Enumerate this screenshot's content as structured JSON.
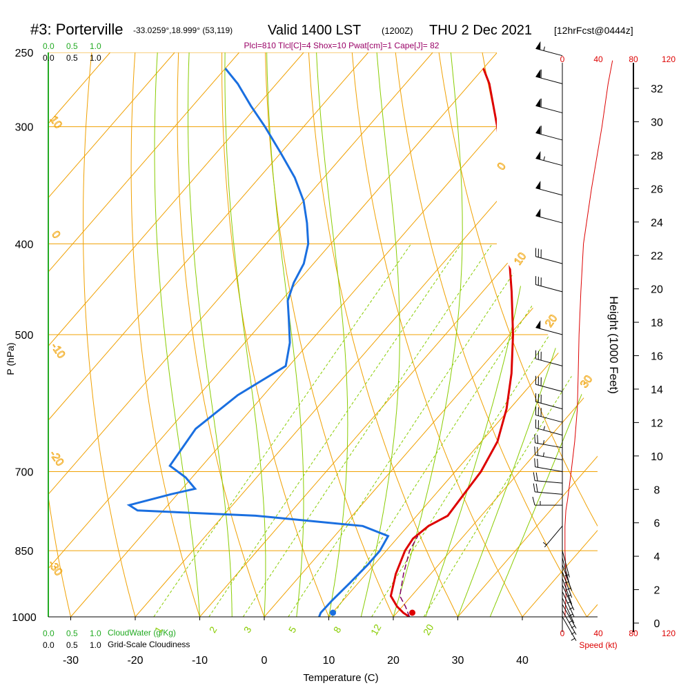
{
  "header": {
    "station": "#3: Porterville",
    "coords": "-33.0259°,18.999° (53,119)",
    "valid": "Valid 1400 LST",
    "utc": "(1200Z)",
    "date": "THU 2 Dec 2021",
    "forecast": "[12hrFcst@0444z]",
    "indices": "Plcl=810 Tlcl[C]=4 Shox=10 Pwat[cm]=1 Cape[J]= 82"
  },
  "labels": {
    "ylabel": "P (hPa)",
    "xlabel": "Temperature (C)",
    "height_label": "Height (1000 Feet)",
    "speed_label": "Speed (kt)",
    "cloudwater_label": "CloudWater (g/Kg)",
    "cloudiness_label": "Grid-Scale Cloudiness"
  },
  "colors": {
    "temperature": "#dd0000",
    "dewpoint": "#1a6fe0",
    "parcel": "#800060",
    "isotherm": "#f0a000",
    "dry_adiabat": "#f0a000",
    "moist_adiabat": "#88cc00",
    "mixing_ratio": "#88cc00",
    "wind_speed": "#dd0000",
    "cloud_scale": "#22aa22",
    "indices_text": "#990066"
  },
  "chart_data": {
    "type": "line",
    "title": "#3: Porterville",
    "xlabel": "Temperature (C)",
    "ylabel": "P (hPa)",
    "x_ticks": [
      -30,
      -20,
      -10,
      0,
      10,
      20,
      30,
      40
    ],
    "p_ticks": [
      1000,
      850,
      700,
      500,
      400,
      300,
      250
    ],
    "pressure_range": [
      1000,
      250
    ],
    "skew": true,
    "isotherm_labels": [
      "10",
      "0",
      "10",
      "20",
      "30"
    ],
    "dry_adiabat_labels": [
      "0",
      "10",
      "20",
      "30",
      "10",
      "0",
      "-10",
      "-20",
      "-30"
    ],
    "mixing_ratio_labels": [
      "1",
      "2",
      "3",
      "5",
      "8",
      "12",
      "20"
    ],
    "series": [
      {
        "name": "Temperature",
        "points": [
          [
            1000,
            22.5
          ],
          [
            990,
            21.0
          ],
          [
            975,
            19.2
          ],
          [
            950,
            16.8
          ],
          [
            900,
            14.6
          ],
          [
            850,
            12.9
          ],
          [
            825,
            12.5
          ],
          [
            800,
            13.2
          ],
          [
            780,
            14.8
          ],
          [
            750,
            14.5
          ],
          [
            700,
            14.0
          ],
          [
            650,
            12.5
          ],
          [
            600,
            9.5
          ],
          [
            550,
            5.5
          ],
          [
            500,
            0.5
          ],
          [
            450,
            -5.5
          ],
          [
            400,
            -12.5
          ],
          [
            350,
            -20.5
          ],
          [
            300,
            -30.0
          ],
          [
            270,
            -37.0
          ],
          [
            260,
            -40.0
          ]
        ]
      },
      {
        "name": "Dewpoint",
        "points": [
          [
            1000,
            8.5
          ],
          [
            990,
            8.2
          ],
          [
            960,
            8.3
          ],
          [
            920,
            8.7
          ],
          [
            880,
            9.0
          ],
          [
            850,
            9.0
          ],
          [
            820,
            8.3
          ],
          [
            800,
            3.0
          ],
          [
            780,
            -15.0
          ],
          [
            770,
            -34.0
          ],
          [
            760,
            -36.0
          ],
          [
            740,
            -31.0
          ],
          [
            730,
            -28.0
          ],
          [
            710,
            -31.0
          ],
          [
            690,
            -35.0
          ],
          [
            630,
            -36.0
          ],
          [
            580,
            -34.0
          ],
          [
            540,
            -30.5
          ],
          [
            510,
            -33.0
          ],
          [
            480,
            -36.5
          ],
          [
            460,
            -39.0
          ],
          [
            440,
            -40.5
          ],
          [
            420,
            -41.5
          ],
          [
            400,
            -43.5
          ],
          [
            380,
            -46.5
          ],
          [
            360,
            -50.0
          ],
          [
            340,
            -54.5
          ],
          [
            320,
            -60.0
          ],
          [
            300,
            -66.0
          ],
          [
            285,
            -71.0
          ],
          [
            270,
            -76.0
          ],
          [
            260,
            -80.0
          ]
        ]
      },
      {
        "name": "Parcel",
        "points": [
          [
            1000,
            22.5
          ],
          [
            975,
            20.5
          ],
          [
            950,
            18.2
          ],
          [
            900,
            15.8
          ],
          [
            850,
            13.6
          ],
          [
            820,
            12.9
          ]
        ]
      }
    ],
    "surface_points": [
      {
        "name": "surface_temperature",
        "p": 1000,
        "t": 23.8
      },
      {
        "name": "surface_dewpoint",
        "p": 1000,
        "t": 11.5
      }
    ],
    "height_axis": {
      "label": "Height (1000 Feet)",
      "ticks": [
        0,
        2,
        4,
        6,
        8,
        10,
        12,
        14,
        16,
        18,
        20,
        22,
        24,
        26,
        28,
        30,
        32
      ]
    },
    "speed_axis": {
      "label": "Speed (kt)",
      "ticks": [
        0,
        40,
        80,
        120
      ]
    },
    "wind_speed_profile": [
      [
        1000,
        3
      ],
      [
        950,
        4
      ],
      [
        900,
        4
      ],
      [
        850,
        3
      ],
      [
        800,
        3
      ],
      [
        770,
        4
      ],
      [
        750,
        6
      ],
      [
        700,
        10
      ],
      [
        650,
        14
      ],
      [
        600,
        17
      ],
      [
        550,
        18
      ],
      [
        500,
        19
      ],
      [
        450,
        21
      ],
      [
        400,
        24
      ],
      [
        350,
        33
      ],
      [
        300,
        45
      ],
      [
        270,
        52
      ],
      [
        255,
        57
      ]
    ],
    "wind_barbs": [
      {
        "p": 1000,
        "dir": 150,
        "spd": 5
      },
      {
        "p": 985,
        "dir": 150,
        "spd": 5
      },
      {
        "p": 970,
        "dir": 150,
        "spd": 5
      },
      {
        "p": 955,
        "dir": 155,
        "spd": 5
      },
      {
        "p": 940,
        "dir": 155,
        "spd": 5
      },
      {
        "p": 925,
        "dir": 155,
        "spd": 5
      },
      {
        "p": 910,
        "dir": 160,
        "spd": 5
      },
      {
        "p": 895,
        "dir": 160,
        "spd": 5
      },
      {
        "p": 880,
        "dir": 160,
        "spd": 5
      },
      {
        "p": 865,
        "dir": 165,
        "spd": 5
      },
      {
        "p": 850,
        "dir": 165,
        "spd": 5
      },
      {
        "p": 800,
        "dir": 220,
        "spd": 5
      },
      {
        "p": 760,
        "dir": 270,
        "spd": 15
      },
      {
        "p": 740,
        "dir": 275,
        "spd": 20
      },
      {
        "p": 720,
        "dir": 275,
        "spd": 20
      },
      {
        "p": 700,
        "dir": 280,
        "spd": 20
      },
      {
        "p": 680,
        "dir": 280,
        "spd": 25
      },
      {
        "p": 660,
        "dir": 280,
        "spd": 25
      },
      {
        "p": 640,
        "dir": 285,
        "spd": 25
      },
      {
        "p": 620,
        "dir": 285,
        "spd": 30
      },
      {
        "p": 600,
        "dir": 285,
        "spd": 30
      },
      {
        "p": 575,
        "dir": 285,
        "spd": 30
      },
      {
        "p": 540,
        "dir": 285,
        "spd": 30
      },
      {
        "p": 500,
        "dir": 285,
        "spd": 50
      },
      {
        "p": 450,
        "dir": 285,
        "spd": 30
      },
      {
        "p": 420,
        "dir": 285,
        "spd": 30
      },
      {
        "p": 380,
        "dir": 285,
        "spd": 50
      },
      {
        "p": 355,
        "dir": 285,
        "spd": 50
      },
      {
        "p": 330,
        "dir": 285,
        "spd": 55
      },
      {
        "p": 310,
        "dir": 285,
        "spd": 60
      },
      {
        "p": 290,
        "dir": 285,
        "spd": 60
      },
      {
        "p": 270,
        "dir": 285,
        "spd": 60
      },
      {
        "p": 252,
        "dir": 285,
        "spd": 55
      }
    ],
    "cloud_scale": {
      "cloudwater_ticks": [
        "0.0",
        "0.5",
        "1.0"
      ],
      "cloudiness_ticks": [
        "0.0",
        "0.5",
        "1.0"
      ]
    }
  }
}
